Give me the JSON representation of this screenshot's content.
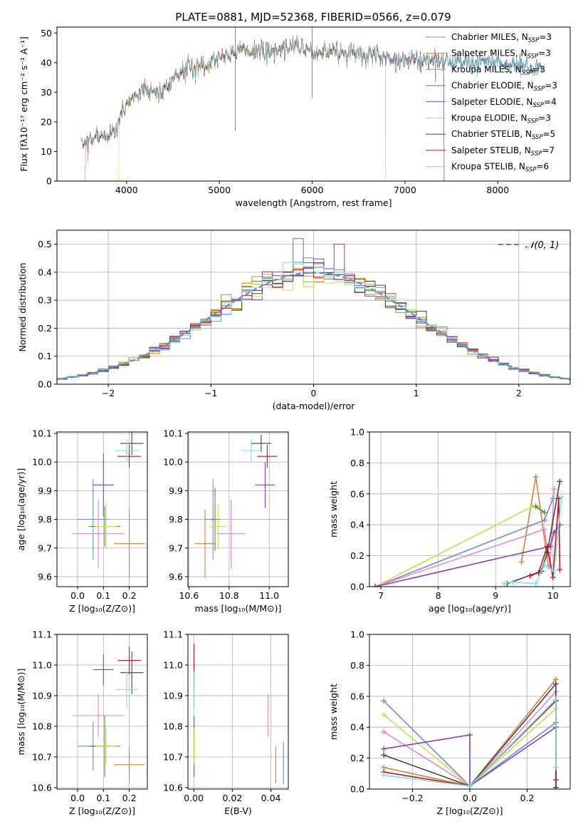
{
  "title": "PLATE=0881, MJD=52368, FIBERID=0566, z=0.079",
  "colors": {
    "Chabrier MILES": "#6a8fd8",
    "Salpeter MILES": "#e07b39",
    "Kroupa MILES": "#d4a017",
    "Chabrier ELODIE": "#4f8a4f",
    "Salpeter ELODIE": "#8e3fb6",
    "Kroupa ELODIE": "#c8e04a",
    "Chabrier STELIB": "#444444",
    "Salpeter STELIB": "#b01c1c",
    "Kroupa STELIB": "#86d9e3",
    "pink": "#e78ac3",
    "normal": "#5b8bd6",
    "grid": "#b0b0b0"
  },
  "chart_data": [
    {
      "id": "spectrum",
      "type": "line",
      "xlabel": "wavelength [Angstrom, rest frame]",
      "ylabel": "Flux [fλ10⁻¹⁷ erg cm⁻² s⁻¹ A⁻¹]",
      "xlim": [
        3250,
        8780
      ],
      "ylim": [
        0,
        52
      ],
      "xticks": [
        4000,
        5000,
        6000,
        7000,
        8000
      ],
      "yticks": [
        0,
        10,
        20,
        30,
        40,
        50
      ],
      "grid": false,
      "legend_position": "top-right",
      "continuum": {
        "x": [
          3530,
          3700,
          3880,
          3950,
          4050,
          4200,
          4350,
          4500,
          4700,
          4900,
          5000,
          5200,
          5400,
          5600,
          5800,
          6000,
          6200,
          6500,
          6800,
          7000,
          7200,
          7400,
          7600,
          7800,
          8000,
          8200,
          8500
        ],
        "y": [
          13,
          15,
          16,
          24,
          28,
          31,
          30,
          35,
          39,
          40,
          42,
          44,
          44,
          44,
          46,
          44,
          44,
          43,
          42,
          41,
          41,
          41,
          40,
          40,
          40,
          39,
          38
        ]
      },
      "series": [
        {
          "name": "Chabrier MILES, N_SSP=3"
        },
        {
          "name": "Salpeter MILES, N_SSP=3"
        },
        {
          "name": "Kroupa MILES, N_SSP=3"
        },
        {
          "name": "Chabrier ELODIE, N_SSP=3"
        },
        {
          "name": "Salpeter ELODIE, N_SSP=4"
        },
        {
          "name": "Kroupa ELODIE, N_SSP=3"
        },
        {
          "name": "Chabrier STELIB, N_SSP=5"
        },
        {
          "name": "Salpeter STELIB, N_SSP=7"
        },
        {
          "name": "Kroupa STELIB, N_SSP=6"
        }
      ]
    },
    {
      "id": "residuals",
      "type": "line",
      "xlabel": "(data-model)/error",
      "ylabel": "Normed distribution",
      "xlim": [
        -2.5,
        2.5
      ],
      "ylim": [
        0,
        0.55
      ],
      "xticks": [
        -2,
        -1,
        0,
        1,
        2
      ],
      "yticks": [
        0.0,
        0.1,
        0.2,
        0.3,
        0.4,
        0.5
      ],
      "grid": true,
      "bin_width": 0.1,
      "legend": "𝒩(0, 1)",
      "legend_position": "top-right"
    },
    {
      "id": "age-Z",
      "type": "scatter",
      "xlabel": "Z [log₁₀(Z/Z⊙)]",
      "ylabel": "age  [log₁₀(age/yr)]",
      "xlim": [
        -0.08,
        0.27
      ],
      "ylim": [
        9.565,
        10.105
      ],
      "xticks": [
        0.0,
        0.1,
        0.2
      ],
      "yticks": [
        9.6,
        9.7,
        9.8,
        9.9,
        10.0,
        10.1
      ],
      "grid": true,
      "points": [
        {
          "c": "Chabrier MILES",
          "x": 0.06,
          "y": 9.8,
          "xe": 0.06,
          "ye": 0.14
        },
        {
          "c": "Salpeter MILES",
          "x": 0.2,
          "y": 9.715,
          "xe": 0.06,
          "ye": 0.12
        },
        {
          "c": "Chabrier ELODIE",
          "x": 0.105,
          "y": 9.775,
          "xe": 0.06,
          "ye": 0.07
        },
        {
          "c": "Salpeter ELODIE",
          "x": 0.1,
          "y": 9.92,
          "xe": 0.04,
          "ye": 0.11
        },
        {
          "c": "Kroupa ELODIE",
          "x": 0.11,
          "y": 9.775,
          "xe": 0.04,
          "ye": 0.08
        },
        {
          "c": "pink",
          "x": 0.08,
          "y": 9.75,
          "xe": 0.1,
          "ye": 0.12
        },
        {
          "c": "Chabrier STELIB",
          "x": 0.21,
          "y": 10.065,
          "xe": 0.045,
          "ye": 0.04
        },
        {
          "c": "Salpeter STELIB",
          "x": 0.2,
          "y": 10.02,
          "xe": 0.045,
          "ye": 0.04
        },
        {
          "c": "Kroupa STELIB",
          "x": 0.19,
          "y": 10.04,
          "xe": 0.045,
          "ye": 0.04
        }
      ]
    },
    {
      "id": "age-mass",
      "type": "scatter",
      "xlabel": "mass [log₁₀(M/M⊙)]",
      "xlim": [
        10.595,
        11.095
      ],
      "ylim": [
        9.565,
        10.105
      ],
      "xticks": [
        10.6,
        10.8,
        11.0
      ],
      "yticks": [
        9.6,
        9.7,
        9.8,
        9.9,
        10.0,
        10.1
      ],
      "grid": true,
      "points": [
        {
          "c": "Chabrier MILES",
          "x": 10.72,
          "y": 9.8,
          "xe": 0.04,
          "ye": 0.14
        },
        {
          "c": "Salpeter MILES",
          "x": 10.68,
          "y": 9.715,
          "xe": 0.05,
          "ye": 0.12
        },
        {
          "c": "Chabrier ELODIE",
          "x": 10.73,
          "y": 9.8,
          "xe": 0.02,
          "ye": 0.11
        },
        {
          "c": "Kroupa ELODIE",
          "x": 10.745,
          "y": 9.775,
          "xe": 0.04,
          "ye": 0.08
        },
        {
          "c": "pink",
          "x": 10.81,
          "y": 9.75,
          "xe": 0.07,
          "ye": 0.12
        },
        {
          "c": "Salpeter ELODIE",
          "x": 10.98,
          "y": 9.92,
          "xe": 0.05,
          "ye": 0.08
        },
        {
          "c": "Chabrier STELIB",
          "x": 10.96,
          "y": 10.065,
          "xe": 0.05,
          "ye": 0.03
        },
        {
          "c": "Salpeter STELIB",
          "x": 10.99,
          "y": 10.02,
          "xe": 0.05,
          "ye": 0.04
        },
        {
          "c": "Kroupa STELIB",
          "x": 10.91,
          "y": 10.04,
          "xe": 0.05,
          "ye": 0.04
        }
      ]
    },
    {
      "id": "weight-age",
      "type": "line",
      "xlabel": "age  [log₁₀(age/yr)]",
      "ylabel": "mass weight",
      "xlim": [
        6.8,
        10.3
      ],
      "ylim": [
        0,
        1
      ],
      "xticks": [
        7,
        8,
        9,
        10
      ],
      "yticks": [
        0.0,
        0.2,
        0.4,
        0.6,
        0.8,
        1.0
      ],
      "grid": true,
      "series": [
        {
          "c": "Chabrier MILES",
          "x": [
            6.9,
            9.85,
            10.0
          ],
          "y": [
            0.0,
            0.43,
            0.57
          ]
        },
        {
          "c": "Salpeter MILES",
          "x": [
            9.45,
            9.7,
            9.92
          ],
          "y": [
            0.16,
            0.71,
            0.13
          ]
        },
        {
          "c": "Kroupa ELODIE",
          "x": [
            6.9,
            9.65,
            9.85
          ],
          "y": [
            0.0,
            0.52,
            0.48
          ]
        },
        {
          "c": "Chabrier ELODIE",
          "x": [
            9.7,
            9.85
          ],
          "y": [
            0.52,
            0.48
          ]
        },
        {
          "c": "pink",
          "x": [
            6.9,
            9.85,
            9.95,
            10.02
          ],
          "y": [
            0.0,
            0.37,
            0.14,
            0.63
          ]
        },
        {
          "c": "Salpeter ELODIE",
          "x": [
            6.9,
            9.95,
            10.02,
            10.12
          ],
          "y": [
            0.0,
            0.26,
            0.35,
            0.4
          ]
        },
        {
          "c": "Chabrier STELIB",
          "x": [
            9.2,
            9.8,
            9.9,
            10.12
          ],
          "y": [
            0.02,
            0.1,
            0.22,
            0.68
          ]
        },
        {
          "c": "Salpeter STELIB",
          "x": [
            9.6,
            9.75,
            9.9,
            10.0,
            10.1,
            10.12
          ],
          "y": [
            0.07,
            0.09,
            0.26,
            0.06,
            0.57,
            0.11
          ]
        },
        {
          "c": "Kroupa STELIB",
          "x": [
            9.15,
            9.3,
            9.7,
            9.85,
            10.02,
            10.15
          ],
          "y": [
            0.02,
            0.03,
            0.02,
            0.14,
            0.1,
            0.58
          ]
        }
      ]
    },
    {
      "id": "mass-Z",
      "type": "scatter",
      "xlabel": "Z [log₁₀(Z/Z⊙)]",
      "ylabel": "mass [log₁₀(M/M⊙)]",
      "xlim": [
        -0.08,
        0.27
      ],
      "ylim": [
        10.595,
        11.1
      ],
      "xticks": [
        0.0,
        0.1,
        0.2
      ],
      "yticks": [
        10.6,
        10.7,
        10.8,
        10.9,
        11.0,
        11.1
      ],
      "grid": true,
      "points": [
        {
          "c": "Chabrier MILES",
          "x": 0.06,
          "y": 10.735,
          "xe": 0.06,
          "ye": 0.08
        },
        {
          "c": "Salpeter MILES",
          "x": 0.2,
          "y": 10.675,
          "xe": 0.06,
          "ye": 0.06
        },
        {
          "c": "Chabrier ELODIE",
          "x": 0.105,
          "y": 10.735,
          "xe": 0.06,
          "ye": 0.1
        },
        {
          "c": "Kroupa ELODIE",
          "x": 0.11,
          "y": 10.735,
          "xe": 0.04,
          "ye": 0.06
        },
        {
          "c": "pink",
          "x": 0.08,
          "y": 10.835,
          "xe": 0.1,
          "ye": 0.07
        },
        {
          "c": "Salpeter ELODIE",
          "x": 0.1,
          "y": 10.985,
          "xe": 0.04,
          "ye": 0.05
        },
        {
          "c": "Chabrier STELIB",
          "x": 0.21,
          "y": 10.975,
          "xe": 0.045,
          "ye": 0.07
        },
        {
          "c": "Salpeter STELIB",
          "x": 0.2,
          "y": 11.015,
          "xe": 0.045,
          "ye": 0.045
        },
        {
          "c": "Kroupa STELIB",
          "x": 0.19,
          "y": 10.92,
          "xe": 0.045,
          "ye": 0.06
        }
      ]
    },
    {
      "id": "mass-EBV",
      "type": "scatter",
      "xlabel": "E(B-V)",
      "xlim": [
        -0.003,
        0.049
      ],
      "ylim": [
        10.595,
        11.1
      ],
      "xticks": [
        0.0,
        0.02,
        0.04
      ],
      "yticks": [
        10.6,
        10.7,
        10.8,
        10.9,
        11.0,
        11.1
      ],
      "grid": true,
      "points": [
        {
          "c": "Salpeter STELIB",
          "x": 0.0002,
          "y": 11.0,
          "xe": 0.0003,
          "ye": 0.07
        },
        {
          "c": "Kroupa STELIB",
          "x": 0.0002,
          "y": 10.92,
          "xe": 0.0003,
          "ye": 0.06
        },
        {
          "c": "Chabrier ELODIE",
          "x": 0.0002,
          "y": 10.735,
          "xe": 0.0003,
          "ye": 0.1
        },
        {
          "c": "Kroupa ELODIE",
          "x": 0.0002,
          "y": 10.735,
          "xe": 0.0003,
          "ye": 0.06
        },
        {
          "c": "pink",
          "x": 0.0385,
          "y": 10.835,
          "xe": 0.0003,
          "ye": 0.07
        },
        {
          "c": "Salpeter MILES",
          "x": 0.0425,
          "y": 10.675,
          "xe": 0.0003,
          "ye": 0.06
        },
        {
          "c": "Chabrier MILES",
          "x": 0.0465,
          "y": 10.68,
          "xe": 0.0003,
          "ye": 0.07
        }
      ]
    },
    {
      "id": "weight-Z",
      "type": "line",
      "xlabel": "Z [log₁₀(Z/Z⊙)]",
      "ylabel": "mass weight",
      "xlim": [
        -0.35,
        0.35
      ],
      "ylim": [
        0,
        1
      ],
      "xticks": [
        -0.2,
        0.0,
        0.2
      ],
      "yticks": [
        0.0,
        0.2,
        0.4,
        0.6,
        0.8,
        1.0
      ],
      "grid": true,
      "series": [
        {
          "c": "Chabrier MILES",
          "x": [
            -0.3,
            0.0,
            0.3,
            0.3
          ],
          "y": [
            0.57,
            0.02,
            0.43,
            0.01
          ]
        },
        {
          "c": "Salpeter MILES",
          "x": [
            -0.3,
            0.0,
            0.3
          ],
          "y": [
            0.14,
            0.02,
            0.71
          ]
        },
        {
          "c": "Kroupa ELODIE",
          "x": [
            -0.3,
            0.0,
            0.3,
            0.3
          ],
          "y": [
            0.48,
            0.02,
            0.52,
            0.01
          ]
        },
        {
          "c": "pink",
          "x": [
            -0.3,
            0.0,
            0.3,
            0.3
          ],
          "y": [
            0.37,
            0.02,
            0.63,
            0.01
          ]
        },
        {
          "c": "Salpeter ELODIE",
          "x": [
            -0.3,
            0.0,
            0.0,
            0.3,
            0.3
          ],
          "y": [
            0.26,
            0.35,
            0.02,
            0.4,
            0.01
          ]
        },
        {
          "c": "Chabrier STELIB",
          "x": [
            -0.3,
            0.0,
            0.3,
            0.3
          ],
          "y": [
            0.22,
            0.02,
            0.68,
            0.01
          ]
        },
        {
          "c": "Salpeter STELIB",
          "x": [
            -0.3,
            0.0,
            0.3,
            0.3
          ],
          "y": [
            0.11,
            0.02,
            0.57,
            0.06
          ]
        },
        {
          "c": "Kroupa STELIB",
          "x": [
            -0.3,
            0.0,
            0.3,
            0.3
          ],
          "y": [
            0.09,
            0.02,
            0.58,
            0.14
          ]
        }
      ]
    }
  ]
}
